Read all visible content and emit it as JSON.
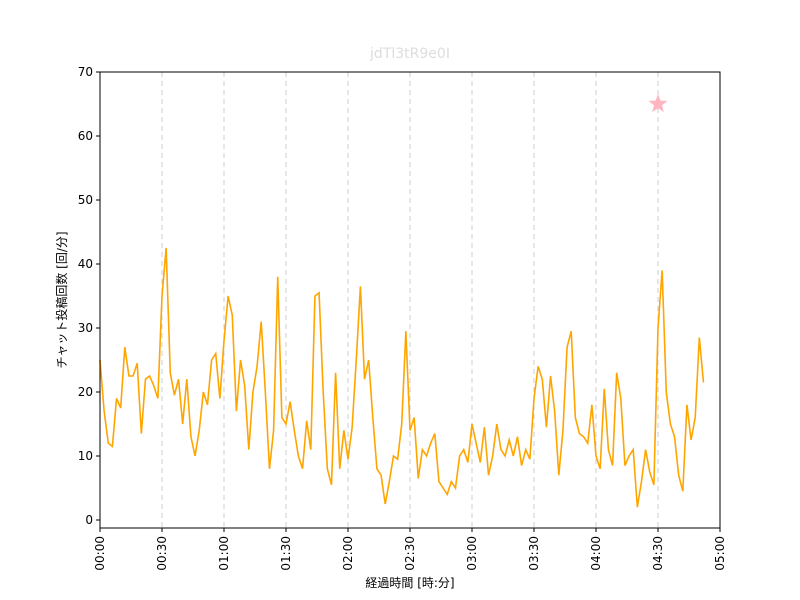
{
  "chart_data": {
    "type": "line",
    "title": "jdTl3tR9e0I",
    "xlabel": "経過時間 [時:分]",
    "ylabel": "チャット投稿回数 [回/分]",
    "x": [
      0,
      2,
      4,
      6,
      8,
      10,
      12,
      14,
      16,
      18,
      20,
      22,
      24,
      26,
      28,
      30,
      32,
      34,
      36,
      38,
      40,
      42,
      44,
      46,
      48,
      50,
      52,
      54,
      56,
      58,
      60,
      62,
      64,
      66,
      68,
      70,
      72,
      74,
      76,
      78,
      80,
      82,
      84,
      86,
      88,
      90,
      92,
      94,
      96,
      98,
      100,
      102,
      104,
      106,
      108,
      110,
      112,
      114,
      116,
      118,
      120,
      122,
      124,
      126,
      128,
      130,
      132,
      134,
      136,
      138,
      140,
      142,
      144,
      146,
      148,
      150,
      152,
      154,
      156,
      158,
      160,
      162,
      164,
      166,
      168,
      170,
      172,
      174,
      176,
      178,
      180,
      182,
      184,
      186,
      188,
      190,
      192,
      194,
      196,
      198,
      200,
      202,
      204,
      206,
      208,
      210,
      212,
      214,
      216,
      218,
      220,
      222,
      224,
      226,
      228,
      230,
      232,
      234,
      236,
      238,
      240,
      242,
      244,
      246,
      248,
      250,
      252,
      254,
      256,
      258,
      260,
      262,
      264,
      266,
      268,
      270,
      272,
      274,
      276,
      278,
      280,
      282,
      284,
      286,
      288,
      290,
      292
    ],
    "series": [
      {
        "color": "#ffa500",
        "values": [
          25,
          17,
          12,
          11.5,
          19,
          17.5,
          27,
          22.5,
          22.5,
          24.5,
          13.5,
          22,
          22.5,
          21,
          19,
          35,
          42.5,
          23,
          19.5,
          22,
          15,
          22,
          13,
          10,
          14,
          20,
          18,
          25,
          26,
          19,
          28,
          35,
          32,
          17,
          25,
          21,
          11,
          20,
          24,
          31,
          20,
          8,
          14,
          38,
          16,
          15,
          18.5,
          14,
          10,
          8,
          15.5,
          11,
          35,
          35.5,
          20,
          8,
          5.5,
          23,
          8,
          14,
          9.5,
          14.5,
          25,
          36.5,
          22,
          25,
          16,
          8,
          7,
          2.5,
          6,
          10,
          9.5,
          15,
          29.5,
          14,
          16,
          6.5,
          11,
          10,
          12,
          13.5,
          6,
          5,
          4,
          6,
          5,
          10,
          11,
          9,
          15,
          12,
          9,
          14.5,
          7,
          10,
          15,
          11,
          10,
          12.5,
          10,
          13,
          8.5,
          11,
          9.5,
          19,
          24,
          22,
          14.5,
          22.5,
          17,
          7,
          14,
          27,
          29.5,
          16,
          13.5,
          13,
          12,
          18,
          10,
          8,
          20.5,
          11,
          8.5,
          23,
          19,
          8.5,
          10,
          11,
          2,
          6,
          11,
          7.5,
          5.5,
          30,
          39,
          20,
          15,
          13,
          7,
          4.5,
          18,
          12.5,
          16,
          28.5,
          21.5
        ]
      }
    ],
    "markers": [
      {
        "x": 270,
        "y": 65,
        "shape": "star",
        "color": "#ffb6c1"
      }
    ],
    "xlim": [
      0,
      300
    ],
    "xticks": [
      {
        "value": 0,
        "label": "00:00"
      },
      {
        "value": 30,
        "label": "00:30"
      },
      {
        "value": 60,
        "label": "01:00"
      },
      {
        "value": 90,
        "label": "01:30"
      },
      {
        "value": 120,
        "label": "02:00"
      },
      {
        "value": 150,
        "label": "02:30"
      },
      {
        "value": 180,
        "label": "03:00"
      },
      {
        "value": 210,
        "label": "03:30"
      },
      {
        "value": 240,
        "label": "04:00"
      },
      {
        "value": 270,
        "label": "04:30"
      },
      {
        "value": 300,
        "label": "05:00"
      }
    ],
    "ylim": [
      -1.25,
      70
    ],
    "yticks": [
      0,
      10,
      20,
      30,
      40,
      50,
      60,
      70
    ],
    "xgrid": true
  }
}
